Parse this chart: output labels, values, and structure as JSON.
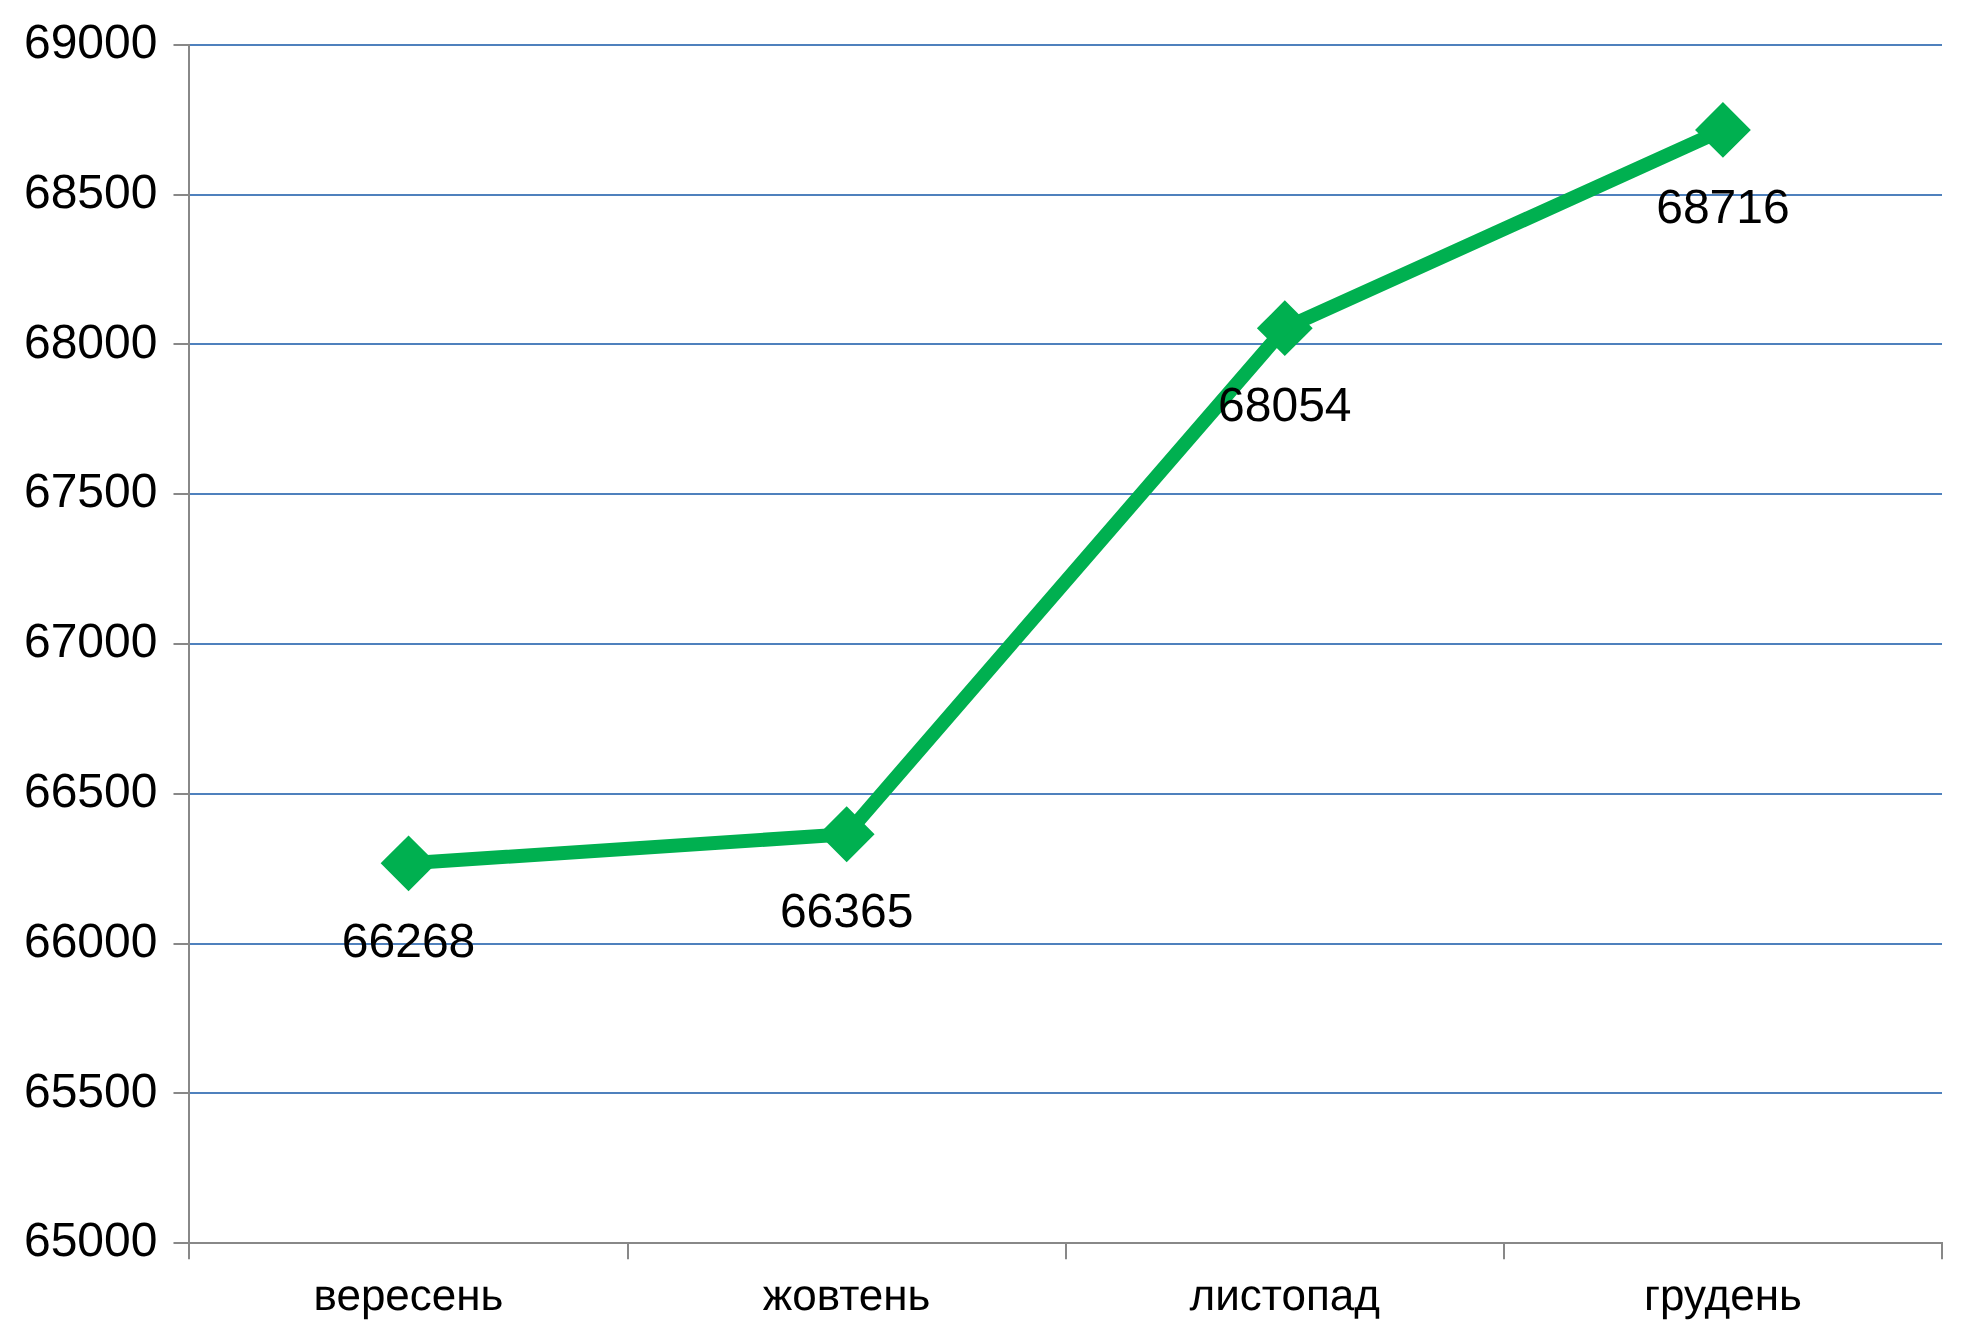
{
  "chart_data": {
    "type": "line",
    "categories": [
      "вересень",
      "жовтень",
      "листопад",
      "грудень"
    ],
    "series": [
      {
        "color": "#00b050",
        "values": [
          66268,
          66365,
          68054,
          68716
        ]
      }
    ],
    "ylim": [
      65000,
      69000
    ],
    "yticks": [
      65000,
      65500,
      66000,
      66500,
      67000,
      67500,
      68000,
      68500,
      69000
    ],
    "grid": "y",
    "legend": false,
    "marker": "diamond",
    "line_style": "solid",
    "data_labels": true
  }
}
